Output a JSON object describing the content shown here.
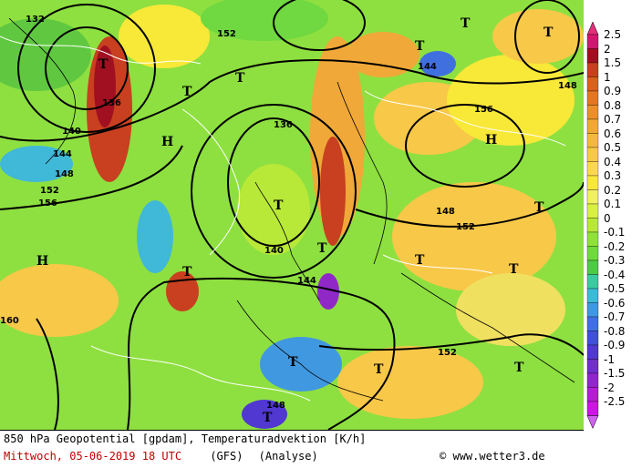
{
  "footer": {
    "line1": "850 hPa Geopotential [gpdam], Temperaturadvektion [K/h]",
    "date": "Mittwoch, 05-06-2019  18 UTC",
    "model": "(GFS)",
    "run": "(Analyse)",
    "copyright": "www.wetter3.de"
  },
  "legend": {
    "labels": [
      "2.5",
      "2",
      "1.5",
      "1",
      "0.9",
      "0.8",
      "0.7",
      "0.6",
      "0.5",
      "0.4",
      "0.3",
      "0.2",
      "0.1",
      "0",
      "-0.1",
      "-0.2",
      "-0.3",
      "-0.4",
      "-0.5",
      "-0.6",
      "-0.7",
      "-0.8",
      "-0.9",
      "-1",
      "-1.5",
      "-2",
      "-2.5"
    ],
    "colors": [
      "#d01870",
      "#a01020",
      "#c84020",
      "#d86020",
      "#e07828",
      "#e89030",
      "#f0a838",
      "#f4b840",
      "#f8c848",
      "#fcd850",
      "#f8e838",
      "#f0f060",
      "#d8f040",
      "#b8e838",
      "#90e040",
      "#70d840",
      "#50c848",
      "#40c8a0",
      "#40b8d8",
      "#4098e0",
      "#4070e0",
      "#4050d8",
      "#5038d0",
      "#7030c8",
      "#9028c8",
      "#b020d0",
      "#c818e0"
    ],
    "top_arrow_color": "#e0307a",
    "bottom_arrow_color": "#d060f0"
  },
  "map": {
    "high_low": [
      "T",
      "T",
      "T",
      "T",
      "T",
      "T",
      "T",
      "T",
      "T",
      "T",
      "T",
      "T",
      "T",
      "T",
      "H",
      "H",
      "H",
      "T",
      "T"
    ],
    "contour_labels": [
      "132",
      "136",
      "140",
      "144",
      "148",
      "152",
      "156",
      "160",
      "136",
      "140",
      "152",
      "144",
      "148",
      "156",
      "148",
      "152",
      "144",
      "152",
      "148"
    ]
  }
}
